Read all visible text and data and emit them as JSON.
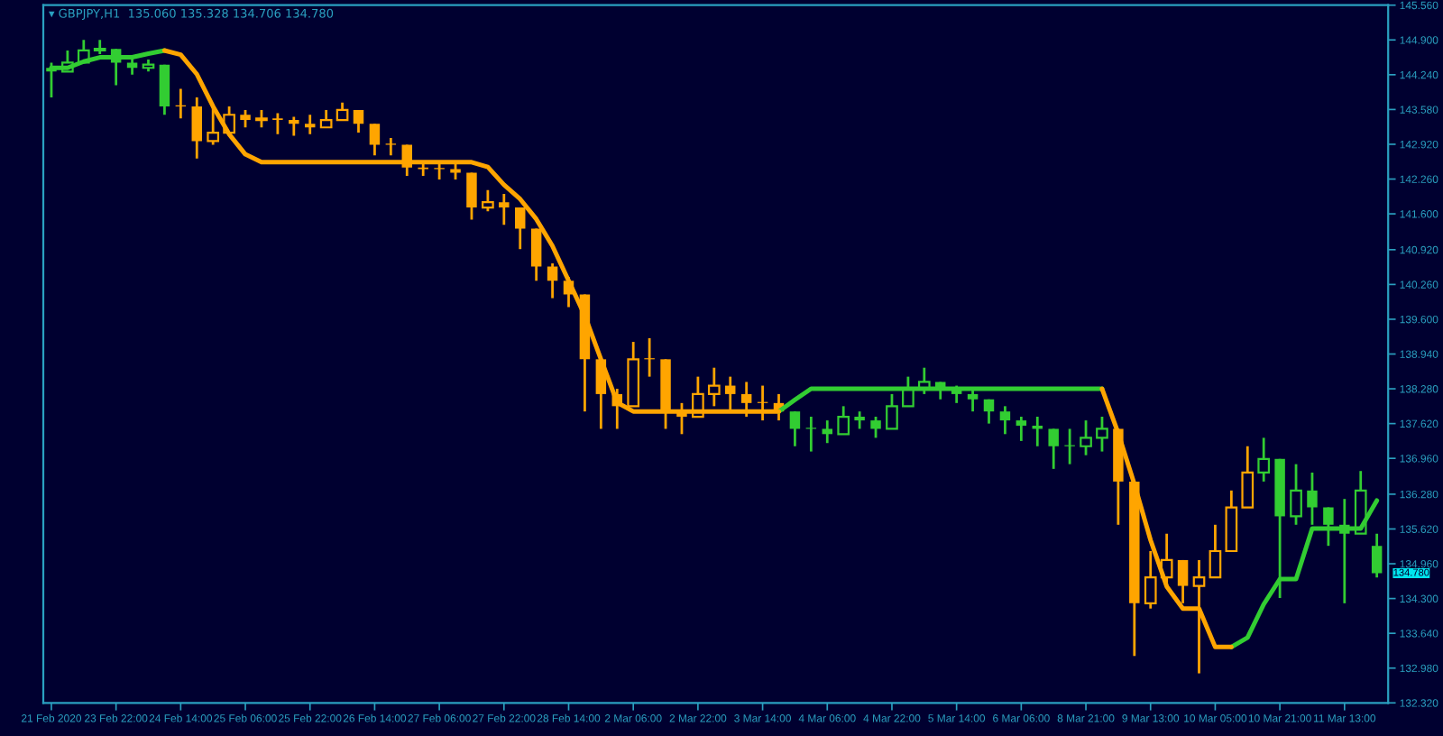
{
  "chart_data": {
    "type": "candlestick",
    "title": "▾ GBPJPY,H1  135.060 135.328 134.706 134.780",
    "categories": [
      "21 Feb 2020",
      null,
      null,
      null,
      "23 Feb 22:00",
      null,
      null,
      null,
      "24 Feb 14:00",
      null,
      null,
      null,
      "25 Feb 06:00",
      null,
      null,
      null,
      "25 Feb 22:00",
      null,
      null,
      null,
      "26 Feb 14:00",
      null,
      null,
      null,
      "27 Feb 06:00",
      null,
      null,
      null,
      "27 Feb 22:00",
      null,
      null,
      null,
      "28 Feb 14:00",
      null,
      null,
      null,
      "2 Mar 06:00",
      null,
      null,
      null,
      "2 Mar 22:00",
      null,
      null,
      null,
      "3 Mar 14:00",
      null,
      null,
      null,
      "4 Mar 06:00",
      null,
      null,
      null,
      "4 Mar 22:00",
      null,
      null,
      null,
      "5 Mar 14:00",
      null,
      null,
      null,
      "6 Mar 06:00",
      null,
      null,
      null,
      "8 Mar 21:00",
      null,
      null,
      null,
      "9 Mar 13:00",
      null,
      null,
      null,
      "10 Mar 05:00",
      null,
      null,
      null,
      "10 Mar 21:00",
      null,
      null,
      null,
      "11 Mar 13:00",
      null,
      null
    ],
    "ohlc": [
      [
        144.37,
        144.47,
        143.81,
        144.3
      ],
      [
        144.3,
        144.7,
        144.3,
        144.47
      ],
      [
        144.47,
        144.9,
        144.47,
        144.7
      ],
      [
        144.7,
        144.9,
        144.63,
        144.73
      ],
      [
        144.73,
        144.73,
        144.04,
        144.47
      ],
      [
        144.47,
        144.57,
        144.24,
        144.37
      ],
      [
        144.37,
        144.53,
        144.3,
        144.43
      ],
      [
        144.43,
        144.43,
        143.48,
        143.64
      ],
      [
        143.64,
        143.97,
        143.41,
        143.64
      ],
      [
        143.64,
        143.81,
        142.65,
        142.98
      ],
      [
        142.98,
        143.64,
        142.91,
        143.14
      ],
      [
        143.14,
        143.64,
        143.14,
        143.48
      ],
      [
        143.48,
        143.57,
        143.24,
        143.38
      ],
      [
        143.38,
        143.57,
        143.24,
        143.41
      ],
      [
        143.41,
        143.51,
        143.11,
        143.38
      ],
      [
        143.38,
        143.44,
        143.08,
        143.31
      ],
      [
        143.31,
        143.48,
        143.11,
        143.24
      ],
      [
        143.24,
        143.57,
        143.24,
        143.38
      ],
      [
        143.38,
        143.71,
        143.38,
        143.57
      ],
      [
        143.57,
        143.57,
        143.14,
        143.31
      ],
      [
        143.31,
        143.31,
        142.71,
        142.91
      ],
      [
        142.91,
        143.04,
        142.71,
        142.91
      ],
      [
        142.91,
        142.91,
        142.32,
        142.48
      ],
      [
        142.48,
        142.58,
        142.32,
        142.45
      ],
      [
        142.45,
        142.58,
        142.25,
        142.45
      ],
      [
        142.45,
        142.55,
        142.25,
        142.38
      ],
      [
        142.38,
        142.38,
        141.49,
        141.72
      ],
      [
        141.72,
        142.05,
        141.65,
        141.82
      ],
      [
        141.82,
        141.98,
        141.39,
        141.72
      ],
      [
        141.72,
        141.72,
        140.93,
        141.32
      ],
      [
        141.32,
        141.32,
        140.33,
        140.6
      ],
      [
        140.6,
        140.66,
        140.0,
        140.33
      ],
      [
        140.33,
        140.4,
        139.83,
        140.07
      ],
      [
        140.07,
        140.07,
        137.85,
        138.84
      ],
      [
        138.84,
        138.84,
        137.52,
        138.18
      ],
      [
        138.18,
        138.28,
        137.52,
        137.95
      ],
      [
        137.95,
        139.17,
        137.95,
        138.84
      ],
      [
        138.84,
        139.24,
        138.51,
        138.84
      ],
      [
        138.84,
        138.84,
        137.52,
        137.85
      ],
      [
        137.85,
        138.01,
        137.42,
        137.75
      ],
      [
        137.75,
        138.51,
        137.75,
        138.18
      ],
      [
        138.18,
        138.68,
        137.95,
        138.34
      ],
      [
        138.34,
        138.51,
        137.85,
        138.18
      ],
      [
        138.18,
        138.41,
        137.75,
        138.01
      ],
      [
        138.01,
        138.34,
        137.68,
        138.01
      ],
      [
        138.01,
        138.18,
        137.68,
        137.85
      ],
      [
        137.85,
        137.85,
        137.19,
        137.52
      ],
      [
        137.52,
        137.75,
        137.09,
        137.52
      ],
      [
        137.52,
        137.68,
        137.25,
        137.42
      ],
      [
        137.42,
        137.95,
        137.42,
        137.75
      ],
      [
        137.75,
        137.85,
        137.52,
        137.68
      ],
      [
        137.68,
        137.75,
        137.35,
        137.52
      ],
      [
        137.52,
        138.18,
        137.52,
        137.95
      ],
      [
        137.95,
        138.51,
        137.95,
        138.28
      ],
      [
        138.28,
        138.68,
        138.18,
        138.41
      ],
      [
        138.41,
        138.41,
        138.08,
        138.25
      ],
      [
        138.25,
        138.34,
        138.01,
        138.18
      ],
      [
        138.18,
        138.28,
        137.85,
        138.08
      ],
      [
        138.08,
        138.08,
        137.62,
        137.85
      ],
      [
        137.85,
        137.95,
        137.42,
        137.68
      ],
      [
        137.68,
        137.75,
        137.29,
        137.58
      ],
      [
        137.58,
        137.75,
        137.19,
        137.52
      ],
      [
        137.52,
        137.52,
        136.76,
        137.19
      ],
      [
        137.19,
        137.52,
        136.85,
        137.19
      ],
      [
        137.19,
        137.68,
        137.02,
        137.35
      ],
      [
        137.35,
        137.75,
        137.09,
        137.52
      ],
      [
        137.52,
        137.52,
        135.7,
        136.52
      ],
      [
        136.52,
        136.52,
        133.21,
        134.21
      ],
      [
        134.21,
        135.2,
        134.11,
        134.7
      ],
      [
        134.7,
        135.53,
        134.54,
        135.03
      ],
      [
        135.03,
        135.03,
        134.21,
        134.54
      ],
      [
        134.54,
        135.03,
        132.88,
        134.7
      ],
      [
        134.7,
        135.7,
        134.7,
        135.2
      ],
      [
        135.2,
        136.35,
        135.2,
        136.03
      ],
      [
        136.03,
        137.19,
        136.03,
        136.69
      ],
      [
        136.69,
        137.35,
        136.52,
        136.95
      ],
      [
        136.95,
        136.95,
        134.31,
        135.86
      ],
      [
        135.86,
        136.85,
        135.7,
        136.35
      ],
      [
        136.35,
        136.69,
        135.7,
        136.03
      ],
      [
        136.03,
        136.03,
        135.3,
        135.7
      ],
      [
        135.7,
        136.19,
        134.21,
        135.53
      ],
      [
        135.53,
        136.72,
        135.53,
        136.35
      ],
      [
        135.3,
        135.53,
        134.7,
        134.78
      ]
    ],
    "colors": [
      "#32cd32",
      "#32cd32",
      "#32cd32",
      "#32cd32",
      "#32cd32",
      "#32cd32",
      "#32cd32",
      "#32cd32",
      "#ffa500",
      "#ffa500",
      "#ffa500",
      "#ffa500",
      "#ffa500",
      "#ffa500",
      "#ffa500",
      "#ffa500",
      "#ffa500",
      "#ffa500",
      "#ffa500",
      "#ffa500",
      "#ffa500",
      "#ffa500",
      "#ffa500",
      "#ffa500",
      "#ffa500",
      "#ffa500",
      "#ffa500",
      "#ffa500",
      "#ffa500",
      "#ffa500",
      "#ffa500",
      "#ffa500",
      "#ffa500",
      "#ffa500",
      "#ffa500",
      "#ffa500",
      "#ffa500",
      "#ffa500",
      "#ffa500",
      "#ffa500",
      "#ffa500",
      "#ffa500",
      "#ffa500",
      "#ffa500",
      "#ffa500",
      "#ffa500",
      "#32cd32",
      "#32cd32",
      "#32cd32",
      "#32cd32",
      "#32cd32",
      "#32cd32",
      "#32cd32",
      "#32cd32",
      "#32cd32",
      "#32cd32",
      "#32cd32",
      "#32cd32",
      "#32cd32",
      "#32cd32",
      "#32cd32",
      "#32cd32",
      "#32cd32",
      "#32cd32",
      "#32cd32",
      "#32cd32",
      "#ffa500",
      "#ffa500",
      "#ffa500",
      "#ffa500",
      "#ffa500",
      "#ffa500",
      "#ffa500",
      "#ffa500",
      "#ffa500",
      "#32cd32",
      "#32cd32",
      "#32cd32",
      "#32cd32",
      "#32cd32",
      "#32cd32",
      "#32cd32",
      "#32cd32"
    ],
    "series": [
      {
        "type": "line",
        "color": "#32cd32",
        "values": [
          144.37,
          144.37,
          144.49,
          144.57,
          144.57,
          144.57,
          144.64,
          144.7,
          null,
          null,
          null,
          null,
          null,
          null,
          null,
          null,
          null,
          null,
          null,
          null,
          null,
          null,
          null,
          null,
          null,
          null,
          null,
          null,
          null,
          null,
          null,
          null,
          null,
          null,
          null,
          null,
          null,
          null,
          null,
          null,
          null,
          null,
          null,
          null,
          null,
          137.85,
          138.07,
          138.28,
          138.28,
          138.28,
          138.28,
          138.28,
          138.28,
          138.28,
          138.28,
          138.28,
          138.28,
          138.28,
          138.28,
          138.28,
          138.28,
          138.28,
          138.28,
          138.28,
          138.28,
          138.28,
          null,
          null,
          null,
          null,
          null,
          null,
          null,
          133.38,
          133.56,
          134.19,
          134.67,
          134.67,
          135.63,
          135.63,
          135.63,
          135.63,
          136.16
        ]
      },
      {
        "type": "line",
        "color": "#ffa500",
        "values": [
          null,
          null,
          null,
          null,
          null,
          null,
          null,
          144.7,
          144.62,
          144.25,
          143.64,
          143.11,
          142.73,
          142.58,
          142.58,
          142.58,
          142.58,
          142.58,
          142.58,
          142.58,
          142.58,
          142.58,
          142.58,
          142.58,
          142.58,
          142.58,
          142.58,
          142.49,
          142.15,
          141.88,
          141.5,
          140.99,
          140.33,
          139.67,
          138.84,
          138.02,
          137.85,
          137.85,
          137.85,
          137.85,
          137.85,
          137.85,
          137.85,
          137.85,
          137.85,
          137.85,
          null,
          null,
          null,
          null,
          null,
          null,
          null,
          null,
          null,
          null,
          null,
          null,
          null,
          null,
          null,
          null,
          null,
          null,
          null,
          138.28,
          137.44,
          136.47,
          135.41,
          134.53,
          134.11,
          134.11,
          133.38,
          133.38,
          null,
          null,
          null,
          null,
          null,
          null,
          null,
          null,
          null
        ]
      }
    ],
    "annotations": [
      "134.780"
    ],
    "ylim": [
      132.32,
      145.56
    ],
    "yticks": [
      {
        "value": 132.32,
        "label": "132.320"
      },
      {
        "value": 132.98,
        "label": "132.980"
      },
      {
        "value": 133.64,
        "label": "133.640"
      },
      {
        "value": 134.3,
        "label": "134.300"
      },
      {
        "value": 134.96,
        "label": "134.960"
      },
      {
        "value": 135.62,
        "label": "135.620"
      },
      {
        "value": 136.28,
        "label": "136.280"
      },
      {
        "value": 136.96,
        "label": "136.960"
      },
      {
        "value": 137.62,
        "label": "137.620"
      },
      {
        "value": 138.28,
        "label": "138.280"
      },
      {
        "value": 138.94,
        "label": "138.940"
      },
      {
        "value": 139.6,
        "label": "139.600"
      },
      {
        "value": 140.26,
        "label": "140.260"
      },
      {
        "value": 140.92,
        "label": "140.920"
      },
      {
        "value": 141.6,
        "label": "141.600"
      },
      {
        "value": 142.26,
        "label": "142.260"
      },
      {
        "value": 142.92,
        "label": "142.920"
      },
      {
        "value": 143.58,
        "label": "143.580"
      },
      {
        "value": 144.24,
        "label": "144.240"
      },
      {
        "value": 144.9,
        "label": "144.900"
      },
      {
        "value": 145.56,
        "label": "145.560"
      }
    ],
    "grid": false,
    "legend": false
  }
}
